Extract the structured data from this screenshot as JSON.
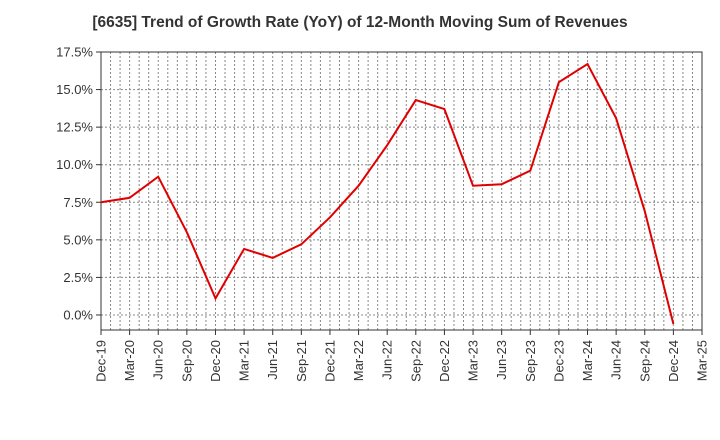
{
  "chart_data": {
    "type": "line",
    "title": "[6635]  Trend of Growth Rate (YoY) of 12-Month Moving Sum of Revenues",
    "xlabel": "",
    "ylabel": "",
    "x": [
      "Dec-19",
      "Mar-20",
      "Jun-20",
      "Sep-20",
      "Dec-20",
      "Mar-21",
      "Jun-21",
      "Sep-21",
      "Dec-21",
      "Mar-22",
      "Jun-22",
      "Sep-22",
      "Dec-22",
      "Mar-23",
      "Jun-23",
      "Sep-23",
      "Dec-23",
      "Mar-24",
      "Jun-24",
      "Sep-24",
      "Dec-24",
      "Mar-25"
    ],
    "series": [
      {
        "color": "#e00000",
        "values": [
          7.5,
          7.8,
          9.2,
          5.5,
          1.1,
          4.4,
          3.8,
          4.7,
          6.5,
          8.6,
          11.3,
          14.3,
          13.7,
          8.6,
          8.7,
          9.6,
          15.5,
          16.7,
          13.1,
          6.9,
          -0.6,
          null
        ]
      }
    ],
    "yticks": [
      0.0,
      2.5,
      5.0,
      7.5,
      10.0,
      12.5,
      15.0,
      17.5
    ],
    "ytick_labels": [
      "0.0%",
      "2.5%",
      "5.0%",
      "7.5%",
      "10.0%",
      "12.5%",
      "15.0%",
      "17.5%"
    ],
    "ylim": [
      -1.0,
      17.5
    ],
    "grid": true
  }
}
